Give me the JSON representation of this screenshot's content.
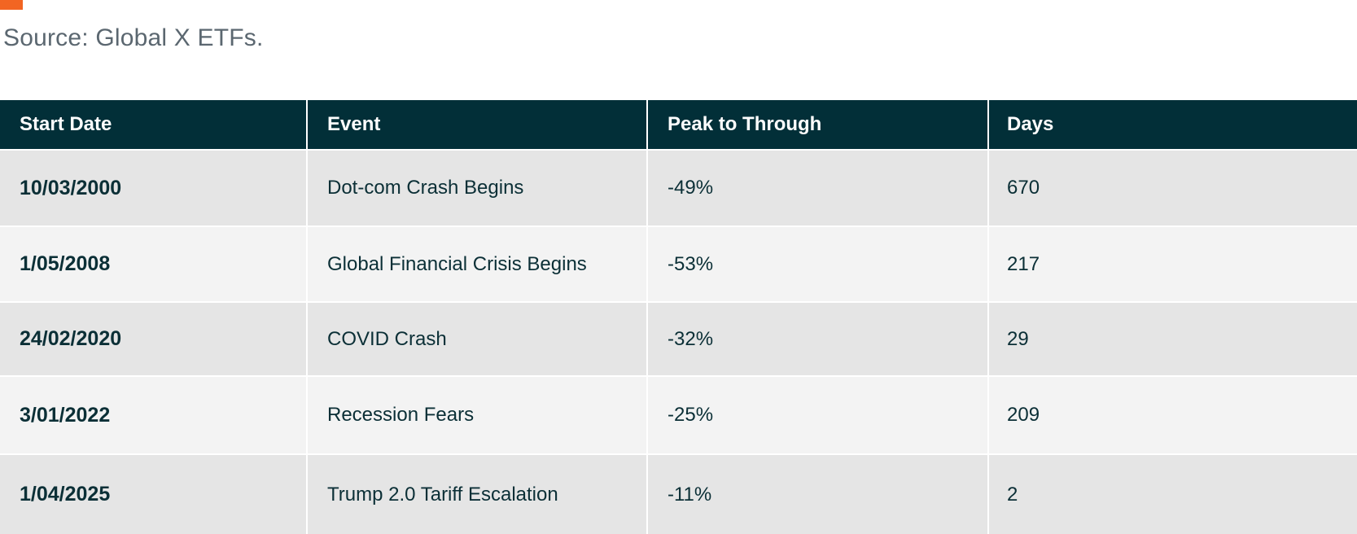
{
  "accent_color": "#f26522",
  "source_note": "Source: Global X ETFs.",
  "table": {
    "header_bg": "#022f38",
    "headers": [
      "Start Date",
      "Event",
      "Peak to Through",
      "Days"
    ],
    "rows": [
      {
        "start_date": "10/03/2000",
        "event": "Dot-com Crash Begins",
        "peak_to_through": "-49%",
        "days": "670"
      },
      {
        "start_date": "1/05/2008",
        "event": "Global Financial Crisis Begins",
        "peak_to_through": "-53%",
        "days": "217"
      },
      {
        "start_date": "24/02/2020",
        "event": "COVID Crash",
        "peak_to_through": "-32%",
        "days": "29"
      },
      {
        "start_date": "3/01/2022",
        "event": "Recession Fears",
        "peak_to_through": "-25%",
        "days": "209"
      },
      {
        "start_date": "1/04/2025",
        "event": "Trump 2.0 Tariff Escalation",
        "peak_to_through": "-11%",
        "days": "2"
      }
    ]
  }
}
